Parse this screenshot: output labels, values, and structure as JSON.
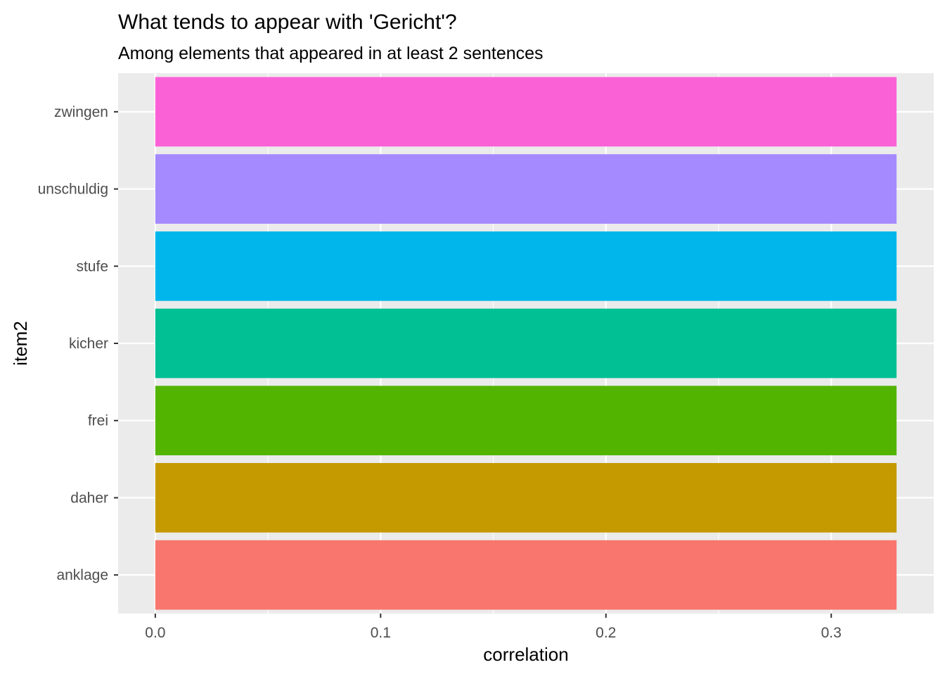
{
  "chart_data": {
    "type": "bar",
    "orientation": "horizontal",
    "title": "What tends to appear with 'Gericht'?",
    "subtitle": "Among elements that appeared in at least 2 sentences",
    "xlabel": "correlation",
    "ylabel": "item2",
    "categories": [
      "anklage",
      "daher",
      "frei",
      "kicher",
      "stufe",
      "unschuldig",
      "zwingen"
    ],
    "values": [
      0.329,
      0.329,
      0.329,
      0.329,
      0.329,
      0.329,
      0.329
    ],
    "colors": [
      "#F8766D",
      "#C49A00",
      "#53B400",
      "#00C094",
      "#00B6EB",
      "#A58AFF",
      "#FB61D7"
    ],
    "xlim": [
      -0.0165,
      0.3455
    ],
    "x_ticks": [
      0.0,
      0.1,
      0.2,
      0.3
    ],
    "x_tick_labels": [
      "0.0",
      "0.1",
      "0.2",
      "0.3"
    ],
    "grid": true,
    "legend": "none",
    "panel_background": "#EBEBEB",
    "grid_color": "#FFFFFF"
  }
}
